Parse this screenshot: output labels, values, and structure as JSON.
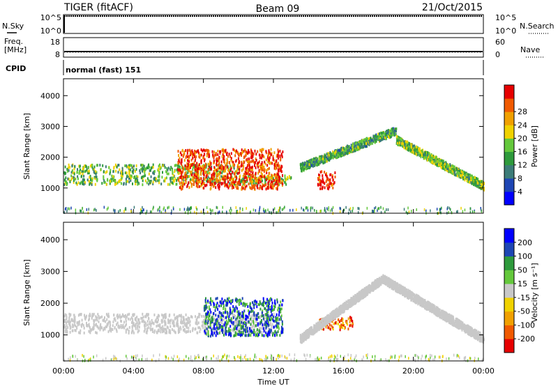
{
  "header": {
    "station": "TIGER (fitACF)",
    "beam": "Beam 09",
    "date": "21/Oct/2015"
  },
  "strips": {
    "nsky_label": "N.Sky",
    "nsky_ticks": [
      "10^5",
      "10^0"
    ],
    "nsearch_label": "N.Search",
    "nsearch_ticks": [
      "10^5",
      "10^0"
    ],
    "freq_label_1": "Freq.",
    "freq_label_2": "[MHz]",
    "freq_ticks": [
      "18",
      "8"
    ],
    "nave_label": "Nave",
    "nave_ticks": [
      "60",
      "0"
    ],
    "cpid_label": "CPID",
    "cpid_text": "normal (fast) 151"
  },
  "chart_data": [
    {
      "type": "heatmap",
      "title": "",
      "xlabel": "Time UT",
      "ylabel": "Slant Range [km]",
      "x_ticks": [
        "00:00",
        "04:00",
        "08:00",
        "12:00",
        "16:00",
        "20:00",
        "00:00"
      ],
      "y_ticks": [
        "1000",
        "2000",
        "3000",
        "4000"
      ],
      "xlim_hours": [
        0,
        24
      ],
      "ylim_km": [
        180,
        4550
      ],
      "colorbar": {
        "label": "Power [dB]",
        "ticks": [
          "4",
          "8",
          "12",
          "16",
          "20",
          "24",
          "28"
        ],
        "range": [
          0,
          30
        ],
        "colors": [
          "#0000ff",
          "#1e46b4",
          "#3c7c78",
          "#2e9a3c",
          "#64c83c",
          "#f0d200",
          "#f0a000",
          "#f05a00",
          "#e60000"
        ]
      },
      "features": [
        {
          "name": "band-low",
          "t_start": 0,
          "t_end": 13,
          "range_km": [
            1150,
            1450
          ],
          "power_db": 14
        },
        {
          "name": "band-mid",
          "t_start": 0,
          "t_end": 10,
          "range_km": [
            1500,
            1800
          ],
          "power_db": 14
        },
        {
          "name": "strong-echoes",
          "t_start": 6.5,
          "t_end": 12.5,
          "range_km": [
            1000,
            2300
          ],
          "power_db": 26
        },
        {
          "name": "evening-patch",
          "t_start": 14.5,
          "t_end": 15.5,
          "range_km": [
            1000,
            1600
          ],
          "power_db": 28
        },
        {
          "name": "rising-arc",
          "t_start": 13.5,
          "t_end": 19,
          "range_km": [
            1700,
            2900
          ],
          "power_db": 12
        },
        {
          "name": "falling-arc",
          "t_start": 19,
          "t_end": 24,
          "range_km": [
            1100,
            2600
          ],
          "power_db": 14
        }
      ]
    },
    {
      "type": "heatmap",
      "title": "",
      "xlabel": "Time UT",
      "ylabel": "Slant Range [km]",
      "x_ticks": [
        "00:00",
        "04:00",
        "08:00",
        "12:00",
        "16:00",
        "20:00",
        "00:00"
      ],
      "y_ticks": [
        "1000",
        "2000",
        "3000",
        "4000"
      ],
      "xlim_hours": [
        0,
        24
      ],
      "ylim_km": [
        180,
        4550
      ],
      "colorbar": {
        "label": "Velocity [m s⁻¹]",
        "ticks": [
          "200",
          "100",
          "50",
          "15",
          "-15",
          "-50",
          "-100",
          "-200"
        ],
        "range": [
          -250,
          250
        ],
        "colors": [
          "#0000ff",
          "#1e46b4",
          "#2e9a3c",
          "#64c83c",
          "#c8c8c8",
          "#f0d200",
          "#f0a000",
          "#f05a00",
          "#e60000"
        ]
      },
      "features": [
        {
          "name": "ground-scatter-band",
          "t_start": 0,
          "t_end": 12,
          "range_km": [
            1100,
            1700
          ],
          "velocity": 0
        },
        {
          "name": "flow-patch",
          "t_start": 8,
          "t_end": 12.5,
          "range_km": [
            1000,
            2200
          ],
          "velocity": 150
        },
        {
          "name": "evening-patch",
          "t_start": 14.5,
          "t_end": 16.5,
          "range_km": [
            1200,
            1600
          ],
          "velocity": -150
        },
        {
          "name": "ground-scatter-arc",
          "t_start": 13.5,
          "t_end": 24,
          "range_km": [
            900,
            2800
          ],
          "velocity": 0
        }
      ]
    }
  ]
}
